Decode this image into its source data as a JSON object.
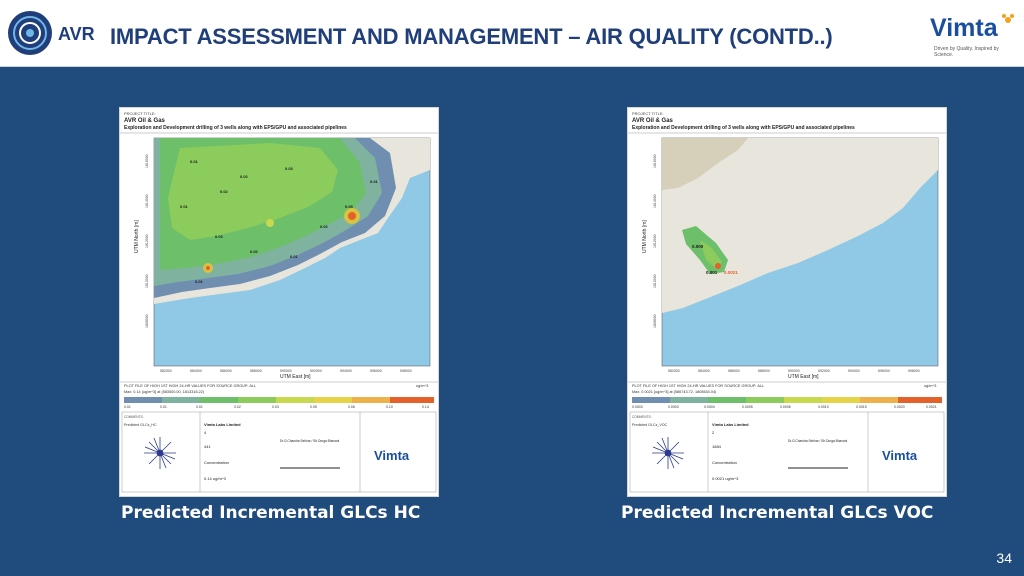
{
  "header": {
    "title": "IMPACT ASSESSMENT AND MANAGEMENT – AIR QUALITY (CONTD..)",
    "logo_left_text": "AVR",
    "logo_right_text": "Vimta",
    "logo_right_tagline": "Driven by Quality. Inspired by Science."
  },
  "colors": {
    "background": "#1f4b7d",
    "title": "#1f3e7a",
    "caption": "#ffffff"
  },
  "panels": [
    {
      "caption": "Predicted Incremental GLCs HC",
      "project_label": "PROJECT TITLE:",
      "project_title": "AVR Oil & Gas",
      "project_subtitle": "Exploration and Development drilling of 3 wells along with EPS/GPU and associated pipelines",
      "y_axis_label": "UTM North [m]",
      "x_axis_label": "UTM East [m]",
      "plot_note": "PLOT FILE OF HIGH 1ST HIGH 24-HR VALUES FOR SOURCE GROUP: ALL",
      "plot_max": "Max: 0.14 [ug/m^3] at (583500.00, 1813316.22)",
      "units": "ug/m^3",
      "legend_values": [
        "0.01",
        "0.01",
        "0.01",
        "0.02",
        "0.03",
        "0.05",
        "0.06",
        "0.10",
        "0.14"
      ],
      "company": "Vimta Labs Limited",
      "sources": "4",
      "receptors": "441",
      "output_type": "Concentration",
      "max_label": "0.14 ug/m^3",
      "modeler": "Dr.G.Chandra Sekhar / Sh.Durga Bhavani",
      "comments_label": "COMMENTS:",
      "comments": "Predicted GLCs_HC",
      "contour_labels": [
        "0.01",
        "0.02",
        "0.03",
        "0.05",
        "0.01",
        "0.02",
        "0.01",
        "0.03",
        "0.02",
        "0.01",
        "0.01",
        "0.02"
      ],
      "watermark_logo": "Vimta"
    },
    {
      "caption": "Predicted Incremental GLCs VOC",
      "project_label": "PROJECT TITLE:",
      "project_title": "AVR Oil & Gas",
      "project_subtitle": "Exploration and Development drilling of 3 wells along with EPS/GPU and associated pipelines",
      "y_axis_label": "UTM North [m]",
      "x_axis_label": "UTM East [m]",
      "plot_note": "PLOT FILE OF HIGH 1ST HIGH 24-HR VALUES FOR SOURCE GROUP: ALL",
      "plot_max": "Max: 0.0021 [ug/m^3] at (586743.72, 1808534.04)",
      "units": "ug/m^3",
      "legend_values": [
        "0.0003",
        "0.0003",
        "0.0004",
        "0.0005",
        "0.0006",
        "0.0010",
        "0.0015",
        "0.0020",
        "0.0021"
      ],
      "company": "Vimta Labs Limited",
      "sources": "2",
      "receptors": "1684",
      "output_type": "Concentration",
      "max_label": "0.0021 ug/m^3",
      "modeler": "Dr.G.Chandra Sekhar / Sh.Durga Bhavani",
      "comments_label": "COMMENTS:",
      "comments": "Predicted GLCs_VOC",
      "contour_labels": [
        "0.000",
        "0.001",
        "0.0021"
      ],
      "watermark_logo": "Vimta"
    }
  ],
  "page_number": "34"
}
